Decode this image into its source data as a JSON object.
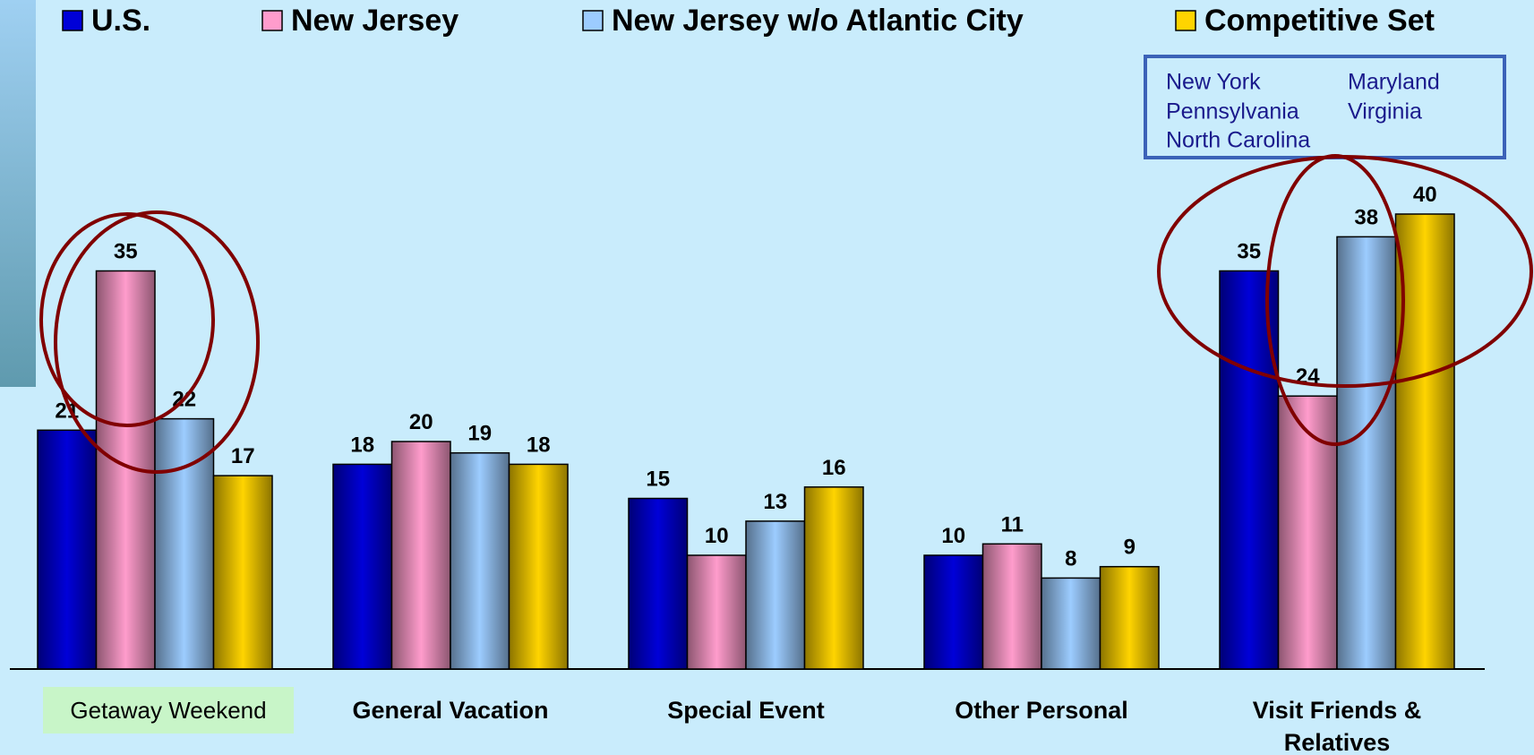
{
  "chart_data": {
    "type": "bar",
    "categories": [
      "Getaway Weekend",
      "General Vacation",
      "Special Event",
      "Other Personal",
      "Visit Friends & Relatives"
    ],
    "series": [
      {
        "name": "U.S.",
        "color": "#0000d8",
        "values": [
          21,
          18,
          15,
          10,
          35
        ]
      },
      {
        "name": "New Jersey",
        "color": "#ff9ccc",
        "values": [
          35,
          20,
          10,
          11,
          24
        ]
      },
      {
        "name": "New Jersey w/o Atlantic City",
        "color": "#9cccff",
        "values": [
          22,
          19,
          13,
          8,
          38
        ]
      },
      {
        "name": "Competitive Set",
        "color": "#ffd400",
        "values": [
          17,
          18,
          16,
          9,
          40
        ]
      }
    ],
    "competitive_set_box": [
      "New York",
      "Maryland",
      "Pennsylvania",
      "Virginia",
      "North Carolina"
    ]
  }
}
